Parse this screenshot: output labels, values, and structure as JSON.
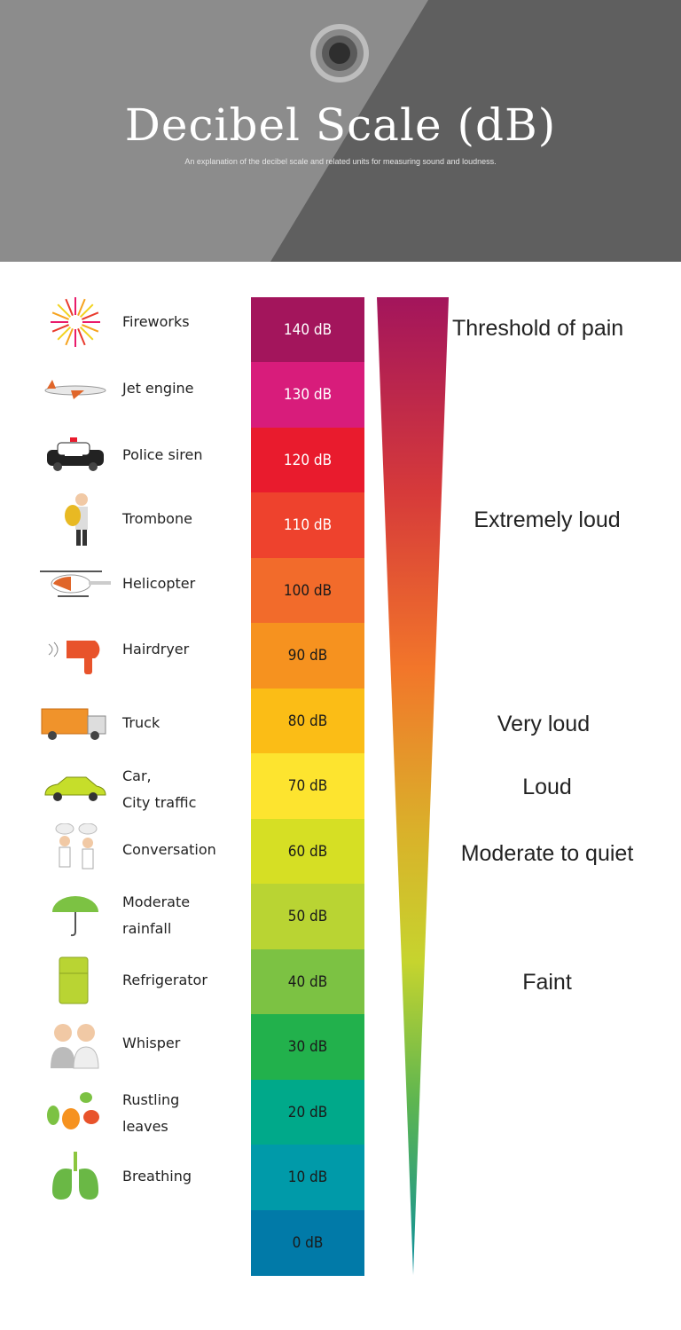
{
  "header": {
    "title": "Decibel Scale (dB)",
    "subtitle": "An explanation of the decibel scale and related units for measuring sound and loudness.",
    "icon": "speaker-circle-icon",
    "colors": {
      "light": "#8c8c8c",
      "dark": "#5f5f5f"
    }
  },
  "scale": [
    {
      "db": "140 dB",
      "color": "#a3155c",
      "text": "light"
    },
    {
      "db": "130 dB",
      "color": "#d81c7b",
      "text": "light"
    },
    {
      "db": "120 dB",
      "color": "#e91b2d",
      "text": "light"
    },
    {
      "db": "110 dB",
      "color": "#ee422d",
      "text": "light"
    },
    {
      "db": "100 dB",
      "color": "#f26b2b",
      "text": "dark"
    },
    {
      "db": "90 dB",
      "color": "#f6921f",
      "text": "dark"
    },
    {
      "db": "80 dB",
      "color": "#fbbd16",
      "text": "dark"
    },
    {
      "db": "70 dB",
      "color": "#fde42f",
      "text": "dark"
    },
    {
      "db": "60 dB",
      "color": "#d6df24",
      "text": "dark"
    },
    {
      "db": "50 dB",
      "color": "#b9d433",
      "text": "dark"
    },
    {
      "db": "40 dB",
      "color": "#7cc243",
      "text": "dark"
    },
    {
      "db": "30 dB",
      "color": "#22b14c",
      "text": "dark"
    },
    {
      "db": "20 dB",
      "color": "#00a98a",
      "text": "dark"
    },
    {
      "db": "10 dB",
      "color": "#009aa9",
      "text": "dark"
    },
    {
      "db": "0 dB",
      "color": "#017aa8",
      "text": "dark"
    }
  ],
  "sources": [
    {
      "label": "Fireworks",
      "icon": "fireworks-icon"
    },
    {
      "label": "Jet engine",
      "icon": "airplane-icon"
    },
    {
      "label": "Police siren",
      "icon": "police-car-icon"
    },
    {
      "label": "Trombone",
      "icon": "trombone-player-icon"
    },
    {
      "label": "Helicopter",
      "icon": "helicopter-icon"
    },
    {
      "label": "Hairdryer",
      "icon": "hairdryer-icon"
    },
    {
      "label": "Truck",
      "icon": "truck-icon"
    },
    {
      "label": "Car,\nCity traffic",
      "icon": "car-icon"
    },
    {
      "label": "Conversation",
      "icon": "conversation-icon"
    },
    {
      "label": "Moderate\nrainfall",
      "icon": "umbrella-rain-icon"
    },
    {
      "label": "Refrigerator",
      "icon": "refrigerator-icon"
    },
    {
      "label": "Whisper",
      "icon": "whisper-icon"
    },
    {
      "label": "Rustling\nleaves",
      "icon": "leaves-icon"
    },
    {
      "label": "Breathing",
      "icon": "lungs-icon"
    }
  ],
  "levels": [
    {
      "label": "Threshold of pain"
    },
    {
      "label": "Extremely loud"
    },
    {
      "label": "Very loud"
    },
    {
      "label": "Loud"
    },
    {
      "label": "Moderate to quiet"
    },
    {
      "label": "Faint"
    }
  ]
}
